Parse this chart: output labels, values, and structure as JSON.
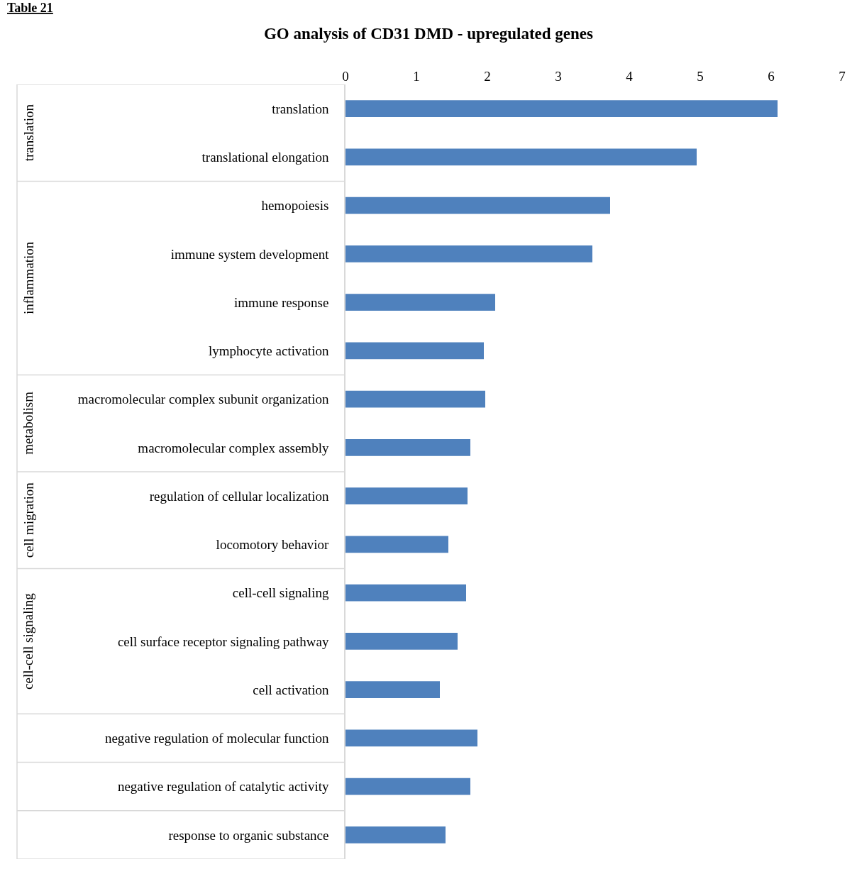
{
  "chart_data": {
    "type": "bar",
    "orientation": "horizontal",
    "title": "GO analysis of CD31 DMD - upregulated genes",
    "categories": [
      "translation",
      "translational elongation",
      "hemopoiesis",
      "immune system development",
      "immune response",
      "lymphocyte activation",
      "macromolecular complex subunit organization",
      "macromolecular complex assembly",
      "regulation of cellular localization",
      "locomotory behavior",
      "cell-cell signaling",
      "cell surface receptor signaling pathway",
      "cell activation",
      "negative regulation of molecular function",
      "negative regulation of catalytic activity",
      "response to organic substance"
    ],
    "values": [
      6.09,
      4.95,
      3.73,
      3.48,
      2.11,
      1.95,
      1.97,
      1.76,
      1.72,
      1.45,
      1.7,
      1.58,
      1.33,
      1.86,
      1.76,
      1.41
    ],
    "color": "#4f81bd",
    "xlim": [
      0,
      7
    ],
    "xticks": [
      0,
      1,
      2,
      3,
      4,
      5,
      6,
      7
    ],
    "grid": false,
    "annotations": [
      "translation",
      "inflammation",
      "metabolism",
      "cell migration",
      "cell-cell signaling",
      "Table 21"
    ]
  }
}
